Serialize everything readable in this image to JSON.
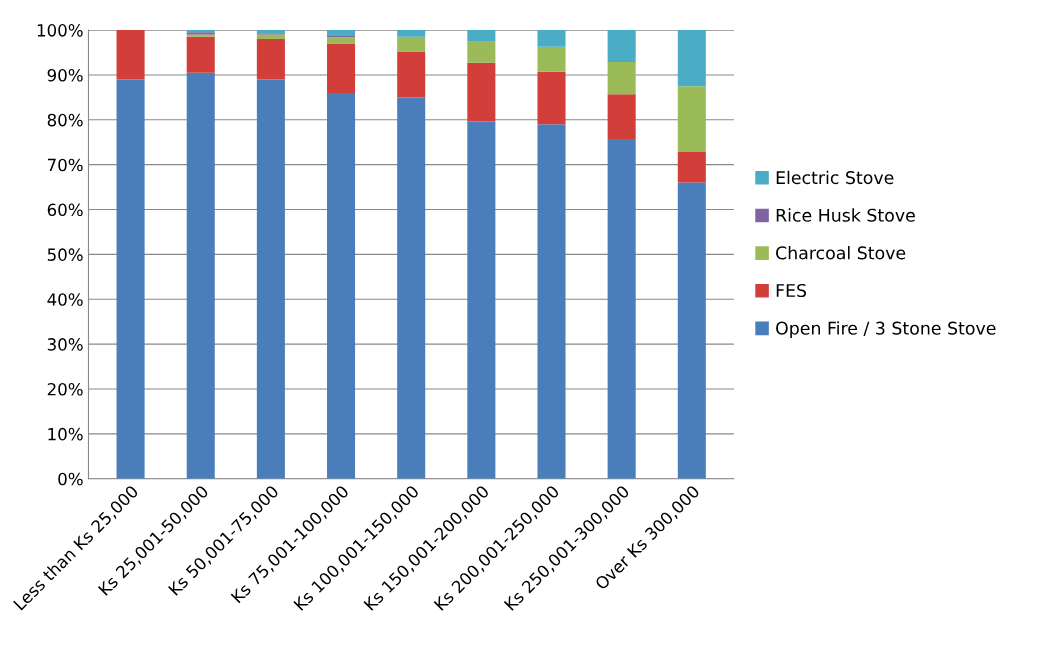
{
  "chart_data": {
    "type": "bar",
    "stacked": true,
    "categories": [
      "Less than Ks 25,000",
      "Ks 25,001-50,000",
      "Ks 50,001-75,000",
      "Ks 75,001-100,000",
      "Ks 100,001-150,000",
      "Ks 150,001-200,000",
      "Ks 200,001-250,000",
      "Ks 250,001-300,000",
      "Over Ks 300,000"
    ],
    "series": [
      {
        "name": "Open Fire / 3 Stone Stove",
        "color": "#4a7ebb",
        "values": [
          89,
          90.5,
          89,
          86,
          85,
          79.6,
          79,
          75.7,
          66
        ]
      },
      {
        "name": "FES",
        "color": "#d23f3a",
        "values": [
          11,
          8,
          9,
          11,
          10.2,
          13.1,
          11.7,
          10,
          6.8
        ]
      },
      {
        "name": "Charcoal Stove",
        "color": "#9bbb59",
        "values": [
          0,
          0.5,
          1,
          1.4,
          3.3,
          4.7,
          5.6,
          7.2,
          14.7
        ]
      },
      {
        "name": "Rice Husk Stove",
        "color": "#8064a2",
        "values": [
          0,
          0.5,
          0.3,
          0.3,
          0,
          0,
          0,
          0,
          0
        ]
      },
      {
        "name": "Electric Stove",
        "color": "#4bacc6",
        "values": [
          0,
          0.5,
          0.7,
          1.3,
          1.5,
          2.6,
          3.7,
          7.1,
          12.5
        ]
      }
    ],
    "ylim": [
      0,
      100
    ],
    "yticks": [
      {
        "value": 0,
        "label": "0%"
      },
      {
        "value": 10,
        "label": "10%"
      },
      {
        "value": 20,
        "label": "20%"
      },
      {
        "value": 30,
        "label": "30%"
      },
      {
        "value": 40,
        "label": "40%"
      },
      {
        "value": 50,
        "label": "50%"
      },
      {
        "value": 60,
        "label": "60%"
      },
      {
        "value": 70,
        "label": "70%"
      },
      {
        "value": 80,
        "label": "80%"
      },
      {
        "value": 90,
        "label": "90%"
      },
      {
        "value": 100,
        "label": "100%"
      }
    ],
    "grid": "y",
    "legend": "right"
  }
}
